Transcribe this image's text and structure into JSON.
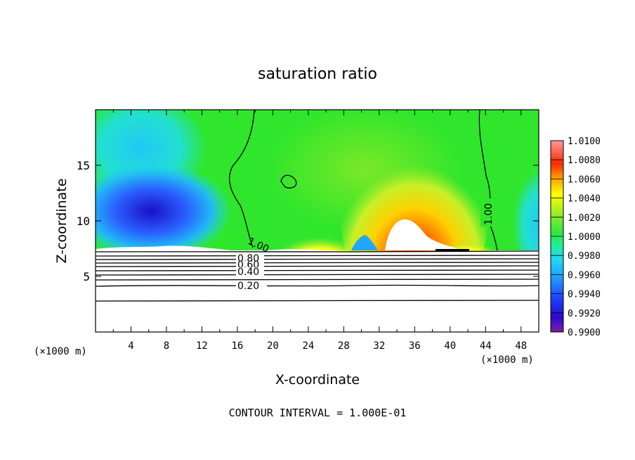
{
  "chart_data": {
    "type": "heatmap",
    "title": "saturation ratio",
    "xlabel": "X-coordinate",
    "ylabel": "Z-coordinate",
    "x_unit_left": "(×1000 m)",
    "x_unit_right": "(×1000 m)",
    "xlim": [
      0,
      50
    ],
    "ylim": [
      0,
      20
    ],
    "x_ticks": [
      "4",
      "8",
      "12",
      "16",
      "20",
      "24",
      "28",
      "32",
      "36",
      "40",
      "44",
      "48"
    ],
    "y_ticks": [
      "5",
      "10",
      "15"
    ],
    "footer": "CONTOUR INTERVAL = 1.000E-01",
    "colorbar": {
      "labels": [
        "1.0100",
        "1.0080",
        "1.0060",
        "1.0040",
        "1.0020",
        "1.0000",
        "0.9980",
        "0.9960",
        "0.9940",
        "0.9920",
        "0.9900"
      ],
      "range": [
        0.99,
        1.01
      ],
      "colors": [
        "#7a1fa2",
        "#2a0ad0",
        "#1f44ff",
        "#1d9bff",
        "#22d8f0",
        "#20eea0",
        "#2fe83a",
        "#9aeb2a",
        "#ffff00",
        "#ffa500",
        "#ff2a00",
        "#ff9a9a"
      ]
    },
    "contour_labels": [
      "0.80",
      "0.60",
      "0.40",
      "0.20",
      "1.00",
      "1.00"
    ],
    "regions": {
      "cloud_base_km": 7.3,
      "supersaturated_core_x": [
        32,
        38
      ],
      "subsaturated_core_x": [
        2,
        14
      ]
    }
  }
}
